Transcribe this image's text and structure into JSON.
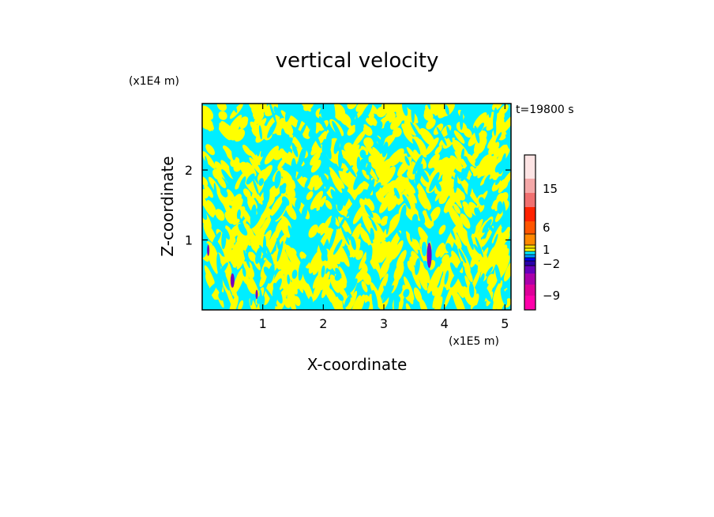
{
  "chart_data": {
    "type": "heatmap",
    "title": "vertical velocity",
    "xlabel": "X-coordinate",
    "ylabel": "Z-coordinate",
    "x_unit": "(x1E5 m)",
    "y_unit": "(x1E4 m)",
    "time_label": "t=19800 s",
    "xlim": [
      0.0,
      5.1
    ],
    "ylim": [
      0.0,
      2.95
    ],
    "x_ticks": [
      "1",
      "2",
      "3",
      "4",
      "5"
    ],
    "x_tick_values": [
      1,
      2,
      3,
      4,
      5
    ],
    "y_ticks": [
      "1",
      "2"
    ],
    "y_tick_values": [
      1,
      2
    ],
    "colorbar": {
      "tick_labels": [
        "15",
        "6",
        "1",
        "−2",
        "−9"
      ],
      "colors_bottom_to_top": [
        "#ff00aa",
        "#dd0099",
        "#aa00aa",
        "#6600bb",
        "#2a00aa",
        "#0000ff",
        "#0099ff",
        "#00eeff",
        "#ffff00",
        "#ffdd00",
        "#ff8800",
        "#ff5500",
        "#ff2200",
        "#f07070",
        "#f4a8a8",
        "#fde4e4"
      ]
    },
    "field_colors": {
      "positive": "#ffff00",
      "negative": "#00eeff",
      "strong_negative": "#7a00bb"
    },
    "vertical_features_x": [
      0.5,
      0.9,
      1.75,
      2.4,
      2.95,
      3.75,
      4.5
    ]
  }
}
